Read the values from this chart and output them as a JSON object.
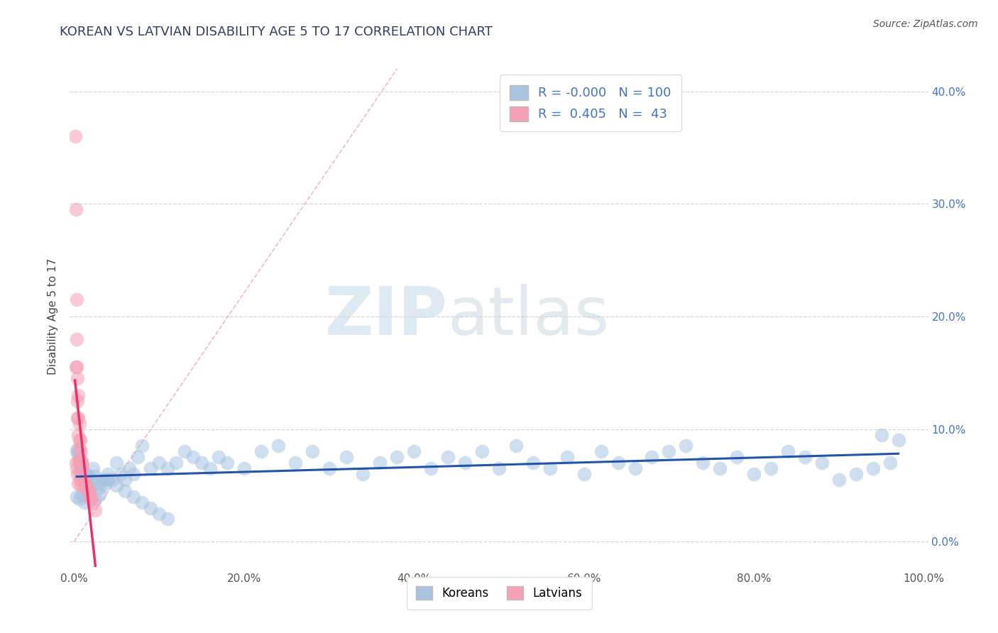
{
  "title": "KOREAN VS LATVIAN DISABILITY AGE 5 TO 17 CORRELATION CHART",
  "source": "Source: ZipAtlas.com",
  "ylabel": "Disability Age 5 to 17",
  "xlim": [
    -0.005,
    1.005
  ],
  "ylim": [
    -0.025,
    0.425
  ],
  "xticks": [
    0.0,
    0.2,
    0.4,
    0.6,
    0.8,
    1.0
  ],
  "xtick_labels": [
    "0.0%",
    "20.0%",
    "40.0%",
    "60.0%",
    "80.0%",
    "100.0%"
  ],
  "yticks": [
    0.0,
    0.1,
    0.2,
    0.3,
    0.4
  ],
  "ytick_labels_right": [
    "0.0%",
    "10.0%",
    "20.0%",
    "30.0%",
    "40.0%"
  ],
  "korean_R": "-0.000",
  "korean_N": "100",
  "latvian_R": "0.405",
  "latvian_N": "43",
  "korean_color": "#a8c4e0",
  "latvian_color": "#f5a0b5",
  "korean_line_color": "#2255aa",
  "latvian_line_color": "#e8306a",
  "diagonal_color": "#f0b0c0",
  "watermark_zip": "ZIP",
  "watermark_atlas": "atlas",
  "legend_korean": "Koreans",
  "legend_latvian": "Latvians",
  "korean_x": [
    0.003,
    0.004,
    0.005,
    0.006,
    0.007,
    0.008,
    0.009,
    0.01,
    0.011,
    0.012,
    0.013,
    0.014,
    0.015,
    0.016,
    0.017,
    0.018,
    0.02,
    0.022,
    0.025,
    0.028,
    0.03,
    0.032,
    0.035,
    0.038,
    0.04,
    0.045,
    0.05,
    0.055,
    0.06,
    0.065,
    0.07,
    0.075,
    0.08,
    0.09,
    0.1,
    0.11,
    0.12,
    0.13,
    0.14,
    0.15,
    0.16,
    0.17,
    0.18,
    0.2,
    0.22,
    0.24,
    0.26,
    0.28,
    0.3,
    0.32,
    0.34,
    0.36,
    0.38,
    0.4,
    0.42,
    0.44,
    0.46,
    0.48,
    0.5,
    0.52,
    0.54,
    0.56,
    0.58,
    0.6,
    0.62,
    0.64,
    0.66,
    0.68,
    0.7,
    0.72,
    0.74,
    0.76,
    0.78,
    0.8,
    0.82,
    0.84,
    0.86,
    0.88,
    0.9,
    0.92,
    0.94,
    0.96,
    0.003,
    0.006,
    0.009,
    0.012,
    0.018,
    0.025,
    0.03,
    0.04,
    0.05,
    0.06,
    0.07,
    0.08,
    0.09,
    0.1,
    0.11,
    0.95,
    0.97
  ],
  "korean_y": [
    0.08,
    0.082,
    0.078,
    0.072,
    0.068,
    0.065,
    0.07,
    0.062,
    0.06,
    0.058,
    0.055,
    0.052,
    0.06,
    0.058,
    0.055,
    0.05,
    0.048,
    0.065,
    0.058,
    0.052,
    0.048,
    0.055,
    0.05,
    0.055,
    0.06,
    0.055,
    0.07,
    0.06,
    0.055,
    0.065,
    0.06,
    0.075,
    0.085,
    0.065,
    0.07,
    0.065,
    0.07,
    0.08,
    0.075,
    0.07,
    0.065,
    0.075,
    0.07,
    0.065,
    0.08,
    0.085,
    0.07,
    0.08,
    0.065,
    0.075,
    0.06,
    0.07,
    0.075,
    0.08,
    0.065,
    0.075,
    0.07,
    0.08,
    0.065,
    0.085,
    0.07,
    0.065,
    0.075,
    0.06,
    0.08,
    0.07,
    0.065,
    0.075,
    0.08,
    0.085,
    0.07,
    0.065,
    0.075,
    0.06,
    0.065,
    0.08,
    0.075,
    0.07,
    0.055,
    0.06,
    0.065,
    0.07,
    0.04,
    0.038,
    0.042,
    0.035,
    0.045,
    0.038,
    0.042,
    0.055,
    0.05,
    0.045,
    0.04,
    0.035,
    0.03,
    0.025,
    0.02,
    0.095,
    0.09
  ],
  "latvian_x": [
    0.001,
    0.002,
    0.002,
    0.002,
    0.003,
    0.003,
    0.003,
    0.004,
    0.004,
    0.004,
    0.005,
    0.005,
    0.005,
    0.005,
    0.006,
    0.006,
    0.006,
    0.007,
    0.007,
    0.007,
    0.008,
    0.008,
    0.008,
    0.009,
    0.009,
    0.01,
    0.01,
    0.011,
    0.012,
    0.013,
    0.014,
    0.015,
    0.016,
    0.017,
    0.018,
    0.019,
    0.02,
    0.022,
    0.025,
    0.003,
    0.004,
    0.005,
    0.006
  ],
  "latvian_y": [
    0.36,
    0.295,
    0.155,
    0.07,
    0.215,
    0.155,
    0.065,
    0.145,
    0.11,
    0.06,
    0.13,
    0.095,
    0.072,
    0.052,
    0.105,
    0.082,
    0.062,
    0.09,
    0.072,
    0.055,
    0.08,
    0.065,
    0.05,
    0.072,
    0.055,
    0.068,
    0.055,
    0.055,
    0.052,
    0.05,
    0.048,
    0.048,
    0.046,
    0.044,
    0.042,
    0.04,
    0.038,
    0.035,
    0.028,
    0.18,
    0.125,
    0.11,
    0.09
  ],
  "background_color": "#ffffff",
  "grid_color": "#cccccc",
  "title_color": "#2f3f5f",
  "axis_label_color": "#444444",
  "tick_color_right": "#4472c4",
  "tick_color_left": "#888888"
}
